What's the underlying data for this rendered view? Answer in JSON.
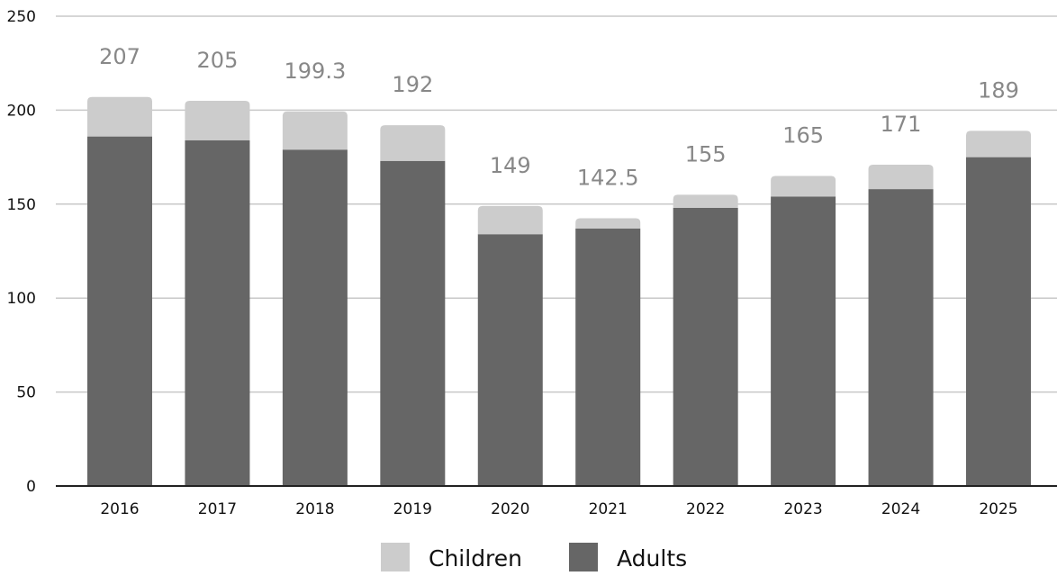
{
  "chart_data": {
    "type": "bar",
    "stacked": true,
    "title": "",
    "xlabel": "",
    "ylabel": "",
    "ylim": [
      0,
      250
    ],
    "yticks": [
      0,
      50,
      100,
      150,
      200,
      250
    ],
    "grid": true,
    "legend_position": "bottom",
    "categories": [
      "2016",
      "2017",
      "2018",
      "2019",
      "2020",
      "2021",
      "2022",
      "2023",
      "2024",
      "2025"
    ],
    "series": [
      {
        "name": "Adults",
        "color": "#666666",
        "values": [
          186,
          184,
          179,
          173,
          134,
          137,
          148,
          154,
          158,
          175
        ]
      },
      {
        "name": "Children",
        "color": "#cccccc",
        "values": [
          21,
          21,
          20.3,
          19,
          15,
          5.5,
          7,
          11,
          13,
          14
        ]
      }
    ],
    "totals": [
      "207",
      "205",
      "199.3",
      "192",
      "149",
      "142.5",
      "155",
      "165",
      "171",
      "189"
    ],
    "legend": [
      "Children",
      "Adults"
    ]
  }
}
